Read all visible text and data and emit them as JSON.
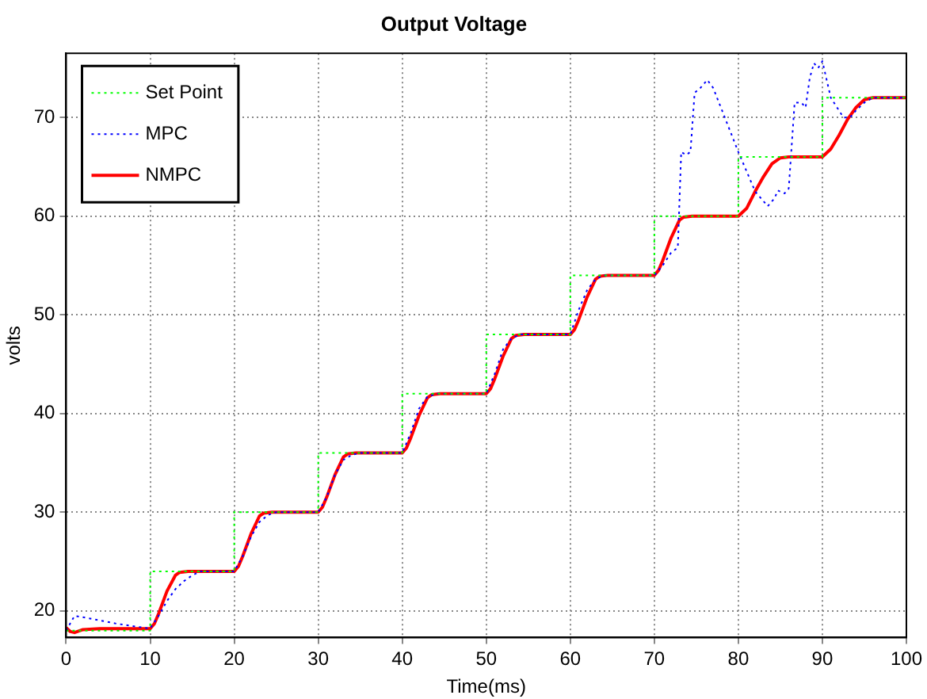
{
  "chart_data": {
    "type": "line",
    "title": "Output Voltage",
    "xlabel": "Time(ms)",
    "ylabel": "volts",
    "xlim": [
      0,
      100
    ],
    "xticks": [
      0,
      10,
      20,
      30,
      40,
      50,
      60,
      70,
      80,
      90,
      100
    ],
    "ylim": [
      17.3,
      76.5
    ],
    "yticks": [
      20,
      30,
      40,
      50,
      60,
      70
    ],
    "grid": true,
    "legend": "top left",
    "marker": "none",
    "series": [
      {
        "name": "Set Point",
        "type": "step",
        "color": "#00ff00",
        "line_style": "dotted",
        "x": [
          0,
          10,
          20,
          30,
          40,
          50,
          60,
          70,
          80,
          90,
          100
        ],
        "values": [
          18,
          24,
          30,
          36,
          42,
          48,
          54,
          60,
          66,
          72,
          72
        ]
      },
      {
        "name": "MPC",
        "type": "line",
        "color": "#0000ff",
        "line_style": "dotted",
        "x": [
          0,
          1,
          3,
          6,
          10,
          11,
          12,
          13,
          14,
          15,
          16,
          20,
          21,
          22,
          23,
          24,
          25,
          30,
          31,
          32,
          33,
          34,
          35,
          40,
          41,
          42,
          43,
          44,
          50,
          51,
          52,
          53,
          54,
          60,
          61,
          62,
          63,
          64,
          70,
          71,
          72,
          72.8,
          73.2,
          73.8,
          74.3,
          74.8,
          75.5,
          76.3,
          77,
          80,
          82,
          83.5,
          84.3,
          84.7,
          85.5,
          86,
          86.7,
          87.5,
          88,
          88.5,
          89,
          89.5,
          90,
          91,
          92.5,
          93.3,
          94,
          95,
          96,
          100
        ],
        "values": [
          18,
          19.5,
          19.2,
          18.7,
          18.2,
          19.5,
          21,
          22.2,
          23,
          23.6,
          24,
          24,
          25.5,
          27.5,
          29,
          29.7,
          30,
          30,
          31.5,
          33.8,
          35.3,
          35.8,
          36,
          36,
          38,
          40.5,
          41.7,
          42,
          42,
          44,
          46.5,
          47.6,
          48,
          48,
          50.5,
          52.5,
          53.6,
          54,
          54,
          55,
          56.3,
          56.8,
          66.5,
          66.2,
          66.5,
          72.5,
          73,
          73.8,
          73,
          66.5,
          62.5,
          61,
          61.8,
          62.6,
          62.3,
          62.8,
          71.5,
          71.5,
          71,
          74,
          75.5,
          75,
          75.7,
          72,
          70,
          70,
          70.7,
          71.5,
          72,
          72
        ]
      },
      {
        "name": "NMPC",
        "type": "line",
        "color": "#ff0000",
        "line_style": "solid",
        "x": [
          0,
          0.5,
          1,
          2,
          4,
          10,
          10.5,
          11,
          12,
          13,
          13.5,
          14.5,
          20,
          20.5,
          21,
          22,
          23,
          23.5,
          24.5,
          30,
          30.5,
          31,
          32,
          33,
          33.5,
          34.5,
          40,
          40.5,
          41,
          42,
          43,
          43.5,
          44.5,
          50,
          50.5,
          51,
          52,
          53,
          53.5,
          54.5,
          60,
          60.5,
          61,
          62,
          63,
          63.5,
          64.5,
          70,
          70.5,
          71,
          72,
          73,
          73.5,
          74.5,
          80,
          81,
          82,
          83,
          84,
          85,
          86,
          90,
          91,
          92,
          93,
          94,
          95,
          96,
          100
        ],
        "values": [
          18.3,
          17.9,
          17.8,
          18.1,
          18.2,
          18.2,
          18.7,
          19.7,
          22,
          23.6,
          23.9,
          24,
          24,
          24.5,
          25.5,
          27.8,
          29.6,
          29.9,
          30,
          30,
          30.5,
          31.5,
          33.8,
          35.6,
          35.9,
          36,
          36,
          36.5,
          37.5,
          39.8,
          41.6,
          41.9,
          42,
          42,
          42.5,
          43.5,
          45.8,
          47.6,
          47.9,
          48,
          48,
          48.5,
          49.5,
          51.8,
          53.6,
          53.9,
          54,
          54,
          54.5,
          55.5,
          57.8,
          59.6,
          59.9,
          60,
          60,
          60.8,
          62.5,
          64,
          65.3,
          65.9,
          66,
          66,
          66.8,
          68.2,
          69.8,
          71,
          71.8,
          72,
          72
        ]
      }
    ]
  }
}
